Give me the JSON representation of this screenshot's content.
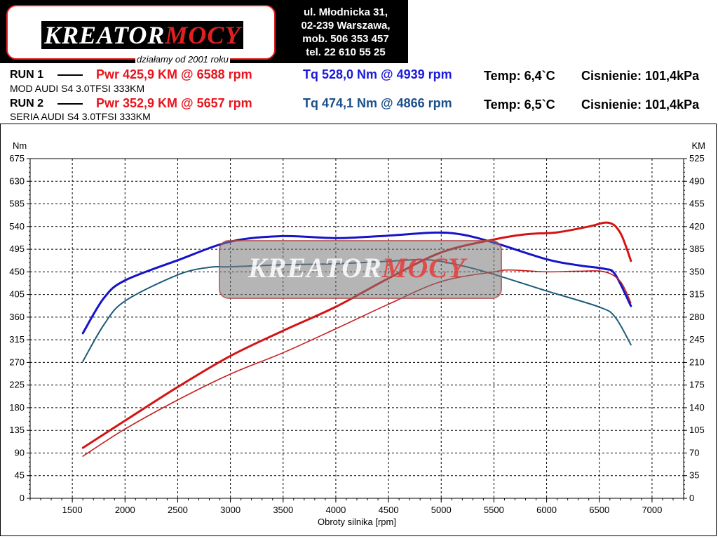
{
  "logo": {
    "wordmark_main": "KREATOR",
    "wordmark_accent": "MOCY",
    "tagline": "działamy od 2001 roku"
  },
  "address": {
    "line1": "ul. Młodnicka 31,",
    "line2": "02-239  Warszawa,",
    "line3": "mob.  506 353 457",
    "line4": "tel.  22 610 55 25"
  },
  "runs": [
    {
      "label": "RUN 1",
      "pwr": "Pwr  425,9 KM @ 6588 rpm",
      "tq": "Tq 528,0 Nm @ 4939 rpm",
      "temp": "Temp: 6,4`C",
      "pressure": "Cisnienie: 101,4kPa",
      "description": "MOD AUDI S4 3.0TFSI 333KM"
    },
    {
      "label": "RUN 2",
      "pwr": "Pwr  352,9 KM @ 5657 rpm",
      "tq": "Tq 474,1 Nm @ 4866 rpm",
      "temp": "Temp: 6,5`C",
      "pressure": "Cisnienie: 101,4kPa",
      "description": "SERIA AUDI S4 3.0TFSI 333KM"
    }
  ],
  "colors": {
    "pwr_text": "#e8141c",
    "tq1_text": "#1a1adc",
    "tq2_text": "#1a4f8a",
    "tq1_line": "#1414c8",
    "tq2_line": "#1d5a7a",
    "pwr1_line": "#d41414",
    "pwr2_line": "#c81e1e",
    "grid": "#000000"
  },
  "watermark": {
    "main": "KREATOR",
    "accent": "MOCY"
  },
  "chart_data": {
    "type": "line",
    "xlabel": "Obroty silnika [rpm]",
    "ylabel_left": "Nm",
    "ylabel_right": "KM",
    "xlim": [
      1100,
      7300
    ],
    "ylim_left": [
      0,
      675
    ],
    "ylim_right": [
      0,
      525
    ],
    "x_ticks": [
      1500,
      2000,
      2500,
      3000,
      3500,
      4000,
      4500,
      5000,
      5500,
      6000,
      6500,
      7000
    ],
    "y_ticks_left": [
      0,
      45,
      90,
      135,
      180,
      225,
      270,
      315,
      360,
      405,
      450,
      495,
      540,
      585,
      630,
      675
    ],
    "y_ticks_right": [
      0,
      35,
      70,
      105,
      140,
      175,
      210,
      245,
      280,
      315,
      350,
      385,
      420,
      455,
      490,
      525
    ],
    "grid": true,
    "series": [
      {
        "name": "RUN 1",
        "kind": "torque",
        "axis": "left",
        "points": [
          [
            1600,
            328
          ],
          [
            1800,
            398
          ],
          [
            2000,
            433
          ],
          [
            2500,
            473
          ],
          [
            3000,
            510
          ],
          [
            3500,
            521
          ],
          [
            4000,
            517
          ],
          [
            4500,
            522
          ],
          [
            4939,
            528
          ],
          [
            5200,
            524
          ],
          [
            5500,
            508
          ],
          [
            6000,
            475
          ],
          [
            6300,
            463
          ],
          [
            6550,
            456
          ],
          [
            6650,
            445
          ],
          [
            6800,
            382
          ]
        ]
      },
      {
        "name": "RUN 2",
        "kind": "torque",
        "axis": "left",
        "points": [
          [
            1600,
            272
          ],
          [
            1800,
            345
          ],
          [
            2000,
            392
          ],
          [
            2500,
            444
          ],
          [
            2800,
            459
          ],
          [
            3000,
            460
          ],
          [
            3500,
            464
          ],
          [
            4000,
            466
          ],
          [
            4500,
            471
          ],
          [
            4866,
            474
          ],
          [
            5200,
            462
          ],
          [
            5500,
            445
          ],
          [
            6000,
            412
          ],
          [
            6500,
            380
          ],
          [
            6650,
            360
          ],
          [
            6800,
            305
          ]
        ]
      },
      {
        "name": "RUN 1",
        "kind": "power",
        "axis": "right",
        "points": [
          [
            1600,
            78
          ],
          [
            2000,
            120
          ],
          [
            2500,
            172
          ],
          [
            3000,
            220
          ],
          [
            3500,
            259
          ],
          [
            4000,
            296
          ],
          [
            4500,
            340
          ],
          [
            5000,
            380
          ],
          [
            5500,
            400
          ],
          [
            5800,
            408
          ],
          [
            6100,
            411
          ],
          [
            6400,
            420
          ],
          [
            6588,
            425.9
          ],
          [
            6700,
            410
          ],
          [
            6800,
            367
          ]
        ]
      },
      {
        "name": "RUN 2",
        "kind": "power",
        "axis": "right",
        "points": [
          [
            1600,
            65
          ],
          [
            2000,
            107
          ],
          [
            2500,
            152
          ],
          [
            3000,
            192
          ],
          [
            3500,
            225
          ],
          [
            4000,
            262
          ],
          [
            4500,
            300
          ],
          [
            5000,
            335
          ],
          [
            5500,
            350
          ],
          [
            5657,
            352.9
          ],
          [
            6000,
            350
          ],
          [
            6300,
            351
          ],
          [
            6550,
            350
          ],
          [
            6700,
            335
          ],
          [
            6800,
            302
          ]
        ]
      }
    ]
  }
}
